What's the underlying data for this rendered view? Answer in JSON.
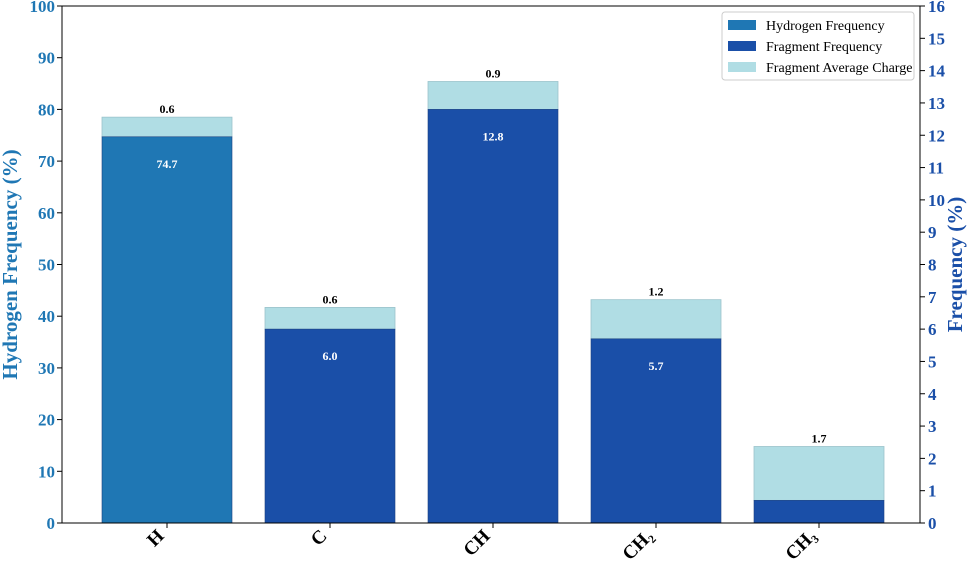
{
  "chart_data": {
    "type": "bar",
    "categories": [
      "H",
      "C",
      "CH",
      "CH₂",
      "CH₃"
    ],
    "series": [
      {
        "name": "Hydrogen Frequency",
        "axis": "left",
        "color": "#1f77b4",
        "values": [
          74.7,
          null,
          null,
          null,
          null
        ]
      },
      {
        "name": "Fragment Frequency",
        "axis": "right",
        "color": "#1a4fa8",
        "values": [
          null,
          6.0,
          12.8,
          5.7,
          0.7
        ],
        "labels": [
          "74.7",
          "6.0",
          "12.8",
          "5.7",
          "0.7"
        ]
      },
      {
        "name": "Fragment Average Charge",
        "axis": "stacked",
        "color": "#b0dde4",
        "values": [
          0.6,
          0.6,
          0.9,
          1.2,
          1.7
        ],
        "labels": [
          "0.6",
          "0.6",
          "0.9",
          "1.2",
          "1.7"
        ],
        "top_left_axis": [
          78.5,
          41.7,
          85.4,
          43.2,
          14.8
        ]
      }
    ],
    "ylabel": "Hydrogen Frequency (%)",
    "y2label": "Frequency (%)",
    "ylim": [
      0,
      100
    ],
    "y2lim": [
      0,
      16
    ],
    "yticks": [
      "0",
      "10",
      "20",
      "30",
      "40",
      "50",
      "60",
      "70",
      "80",
      "90",
      "100"
    ],
    "y2ticks": [
      "0",
      "1",
      "2",
      "3",
      "4",
      "5",
      "6",
      "7",
      "8",
      "9",
      "10",
      "11",
      "12",
      "13",
      "14",
      "15",
      "16"
    ],
    "ylabel_color": "#1f77b4",
    "y2label_color": "#1a4fa8",
    "grid": false,
    "legend_position": "top-right"
  }
}
